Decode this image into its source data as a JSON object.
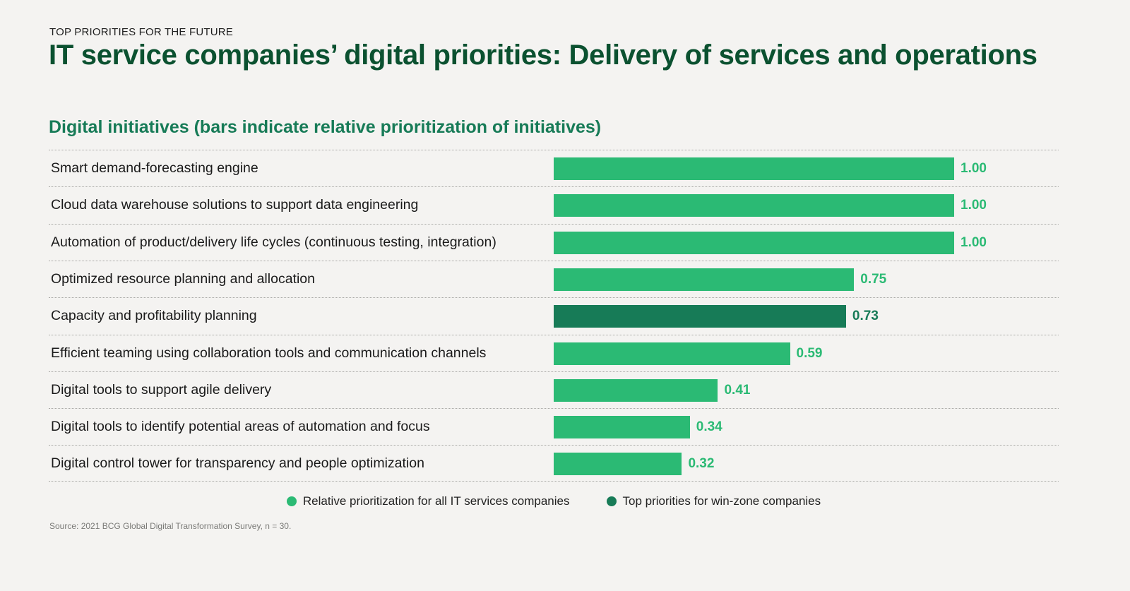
{
  "header": {
    "eyebrow": "TOP PRIORITIES FOR THE FUTURE",
    "title": "IT service companies’ digital priorities: Delivery of services and operations"
  },
  "colors": {
    "all_companies": "#2bba74",
    "win_zone": "#177b57",
    "title": "#0b5130"
  },
  "chart_data": {
    "type": "bar",
    "orientation": "horizontal",
    "title": "Digital initiatives (bars indicate relative prioritization of initiatives)",
    "xlabel": "",
    "ylabel": "",
    "xlim": [
      0,
      1.0
    ],
    "grid": false,
    "categories": [
      "Smart demand-forecasting engine",
      "Cloud data warehouse solutions to support data engineering",
      "Automation of product/delivery life cycles (continuous testing, integration)",
      "Optimized resource planning and allocation",
      "Capacity and profitability planning",
      "Efficient teaming using collaboration tools and communication channels",
      "Digital tools to support agile delivery",
      "Digital tools to identify potential areas of automation and focus",
      "Digital control tower for transparency and people optimization"
    ],
    "values": [
      1.0,
      1.0,
      1.0,
      0.75,
      0.73,
      0.59,
      0.41,
      0.34,
      0.32
    ],
    "value_labels": [
      "1.00",
      "1.00",
      "1.00",
      "0.75",
      "0.73",
      "0.59",
      "0.41",
      "0.34",
      "0.32"
    ],
    "series_membership": [
      "all",
      "all",
      "all",
      "all",
      "win-zone",
      "all",
      "all",
      "all",
      "all"
    ],
    "legend": {
      "placement": "bottom-center",
      "entries": [
        {
          "key": "all",
          "label": "Relative prioritization for all IT services companies"
        },
        {
          "key": "win-zone",
          "label": "Top priorities for win-zone companies"
        }
      ]
    }
  },
  "footer": {
    "source": "Source: 2021 BCG Global Digital Transformation Survey, n = 30."
  }
}
